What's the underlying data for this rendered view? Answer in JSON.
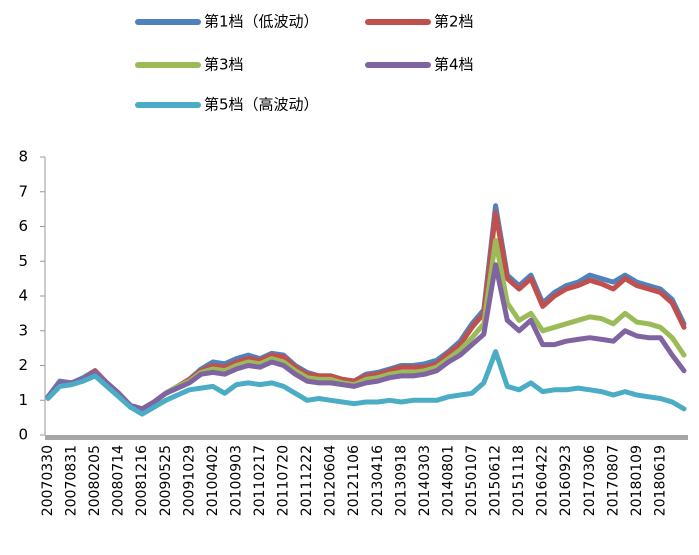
{
  "chart_data": {
    "type": "line",
    "categories": [
      "20070330",
      null,
      "20070831",
      null,
      "20080205",
      null,
      "20080714",
      null,
      "20081216",
      null,
      "20090525",
      null,
      "20091029",
      null,
      "20100402",
      null,
      "20100903",
      null,
      "20110217",
      null,
      "20110720",
      null,
      "20111222",
      null,
      "20120604",
      null,
      "20121106",
      null,
      "20130416",
      null,
      "20130918",
      null,
      "20140303",
      null,
      "20140801",
      null,
      "20150107",
      null,
      "20150612",
      null,
      "20151118",
      null,
      "20160422",
      null,
      "20160923",
      null,
      "20170306",
      null,
      "20170807",
      null,
      "20180109",
      null,
      "20180619",
      null,
      null
    ],
    "series": [
      {
        "name": "第1档（低波动）",
        "color": "#4f81bd",
        "values": [
          1.1,
          1.55,
          1.5,
          1.65,
          1.85,
          1.5,
          1.2,
          0.85,
          0.75,
          0.95,
          1.2,
          1.4,
          1.6,
          1.9,
          2.1,
          2.05,
          2.2,
          2.3,
          2.2,
          2.35,
          2.3,
          2.0,
          1.8,
          1.7,
          1.7,
          1.6,
          1.55,
          1.75,
          1.8,
          1.9,
          2.0,
          2.0,
          2.05,
          2.15,
          2.4,
          2.7,
          3.2,
          3.6,
          6.6,
          4.6,
          4.3,
          4.6,
          3.8,
          4.1,
          4.3,
          4.4,
          4.6,
          4.5,
          4.4,
          4.6,
          4.4,
          4.3,
          4.2,
          3.9,
          3.2
        ]
      },
      {
        "name": "第2档",
        "color": "#c0504d",
        "values": [
          1.1,
          1.5,
          1.5,
          1.6,
          1.85,
          1.5,
          1.2,
          0.85,
          0.75,
          0.95,
          1.2,
          1.4,
          1.6,
          1.85,
          2.0,
          1.95,
          2.1,
          2.2,
          2.15,
          2.3,
          2.25,
          1.95,
          1.75,
          1.7,
          1.7,
          1.6,
          1.55,
          1.7,
          1.75,
          1.85,
          1.95,
          1.95,
          1.95,
          2.05,
          2.35,
          2.6,
          3.1,
          3.5,
          6.4,
          4.5,
          4.2,
          4.5,
          3.7,
          4.0,
          4.2,
          4.3,
          4.45,
          4.35,
          4.2,
          4.5,
          4.3,
          4.2,
          4.1,
          3.8,
          3.1
        ]
      },
      {
        "name": "第3档",
        "color": "#9bbb59",
        "values": [
          1.1,
          1.5,
          1.5,
          1.6,
          1.8,
          1.5,
          1.2,
          0.85,
          0.75,
          0.95,
          1.2,
          1.4,
          1.55,
          1.8,
          1.9,
          1.85,
          2.0,
          2.1,
          2.05,
          2.2,
          2.1,
          1.85,
          1.65,
          1.6,
          1.6,
          1.5,
          1.45,
          1.6,
          1.65,
          1.75,
          1.8,
          1.8,
          1.85,
          1.95,
          2.2,
          2.45,
          2.8,
          3.2,
          5.6,
          3.8,
          3.3,
          3.5,
          3.0,
          3.1,
          3.2,
          3.3,
          3.4,
          3.35,
          3.2,
          3.5,
          3.25,
          3.2,
          3.1,
          2.8,
          2.3
        ]
      },
      {
        "name": "第4档",
        "color": "#8064a2",
        "values": [
          1.1,
          1.5,
          1.5,
          1.6,
          1.8,
          1.5,
          1.2,
          0.85,
          0.75,
          0.95,
          1.2,
          1.35,
          1.5,
          1.75,
          1.8,
          1.75,
          1.9,
          2.0,
          1.95,
          2.1,
          2.0,
          1.75,
          1.55,
          1.5,
          1.5,
          1.45,
          1.4,
          1.5,
          1.55,
          1.65,
          1.7,
          1.7,
          1.75,
          1.85,
          2.1,
          2.3,
          2.6,
          2.9,
          4.9,
          3.3,
          3.0,
          3.3,
          2.6,
          2.6,
          2.7,
          2.75,
          2.8,
          2.75,
          2.7,
          3.0,
          2.85,
          2.8,
          2.8,
          2.3,
          1.85
        ]
      },
      {
        "name": "第5档（高波动）",
        "color": "#4bacc6",
        "values": [
          1.05,
          1.4,
          1.45,
          1.55,
          1.7,
          1.4,
          1.1,
          0.8,
          0.6,
          0.8,
          1.0,
          1.15,
          1.3,
          1.35,
          1.4,
          1.2,
          1.45,
          1.5,
          1.45,
          1.5,
          1.4,
          1.2,
          1.0,
          1.05,
          1.0,
          0.95,
          0.9,
          0.95,
          0.95,
          1.0,
          0.95,
          1.0,
          1.0,
          1.0,
          1.1,
          1.15,
          1.2,
          1.5,
          2.4,
          1.4,
          1.3,
          1.5,
          1.25,
          1.3,
          1.3,
          1.35,
          1.3,
          1.25,
          1.15,
          1.25,
          1.15,
          1.1,
          1.05,
          0.95,
          0.75
        ]
      }
    ],
    "ylim": [
      0,
      8
    ],
    "yticks": [
      0,
      1,
      2,
      3,
      4,
      5,
      6,
      7,
      8
    ],
    "grid": false,
    "legend": "top"
  }
}
